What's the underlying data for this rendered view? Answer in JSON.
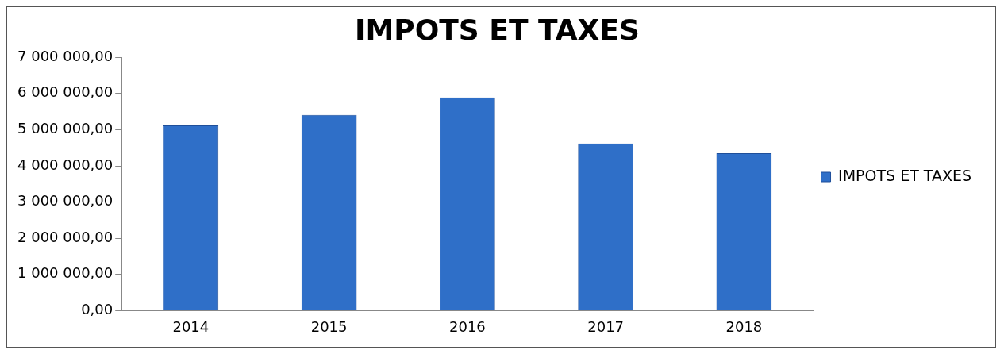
{
  "chart_data": {
    "type": "bar",
    "title": "IMPOTS ET TAXES",
    "categories": [
      "2014",
      "2015",
      "2016",
      "2017",
      "2018"
    ],
    "series": [
      {
        "name": "IMPOTS ET TAXES",
        "color": "#2f6fc8",
        "values": [
          5120000,
          5410000,
          5890000,
          4620000,
          4350000
        ]
      }
    ],
    "ylim": [
      0,
      7000000
    ],
    "yticks": [
      {
        "value": 0,
        "label": "0,00"
      },
      {
        "value": 1000000,
        "label": "1 000 000,00"
      },
      {
        "value": 2000000,
        "label": "2 000 000,00"
      },
      {
        "value": 3000000,
        "label": "3 000 000,00"
      },
      {
        "value": 4000000,
        "label": "4 000 000,00"
      },
      {
        "value": 5000000,
        "label": "5 000 000,00"
      },
      {
        "value": 6000000,
        "label": "6 000 000,00"
      },
      {
        "value": 7000000,
        "label": "7 000 000,00"
      }
    ],
    "grid": false,
    "legend": "right"
  }
}
